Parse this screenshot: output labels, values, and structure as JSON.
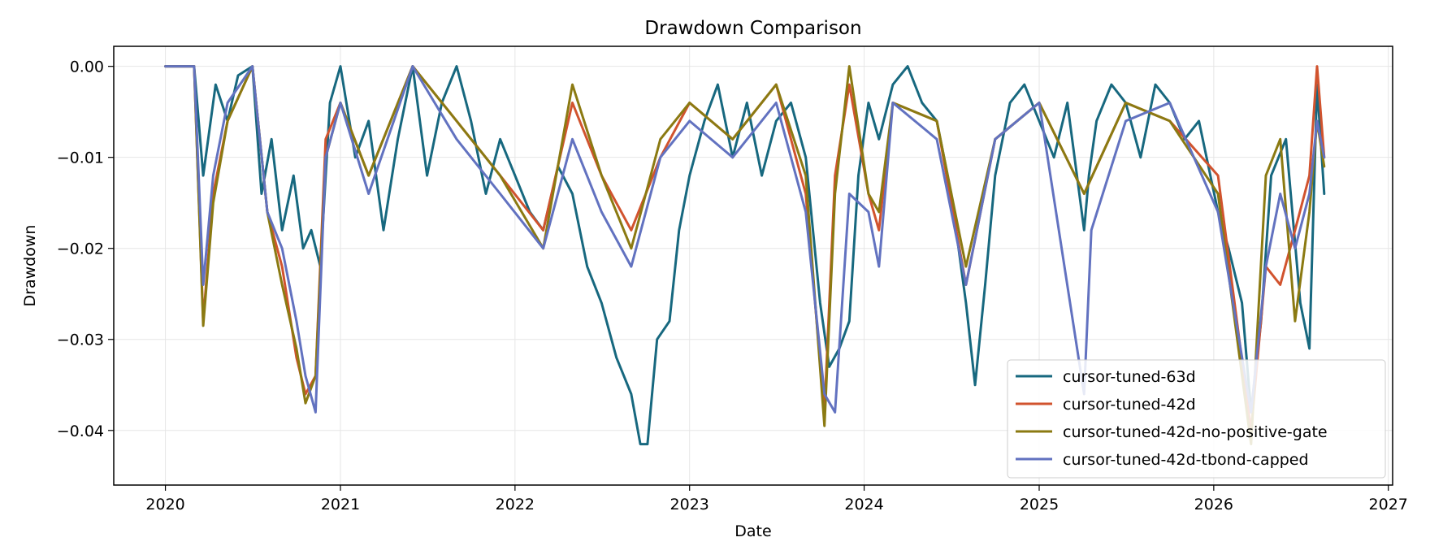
{
  "chart_data": {
    "type": "line",
    "title": "Drawdown Comparison",
    "xlabel": "Date",
    "ylabel": "Drawdown",
    "xlim": [
      "2019-09-15",
      "2027-01-10"
    ],
    "ylim": [
      -0.046,
      0.0022
    ],
    "x_ticks": [
      "2020",
      "2021",
      "2022",
      "2023",
      "2024",
      "2025",
      "2026",
      "2027"
    ],
    "y_ticks": [
      "0.00",
      "−0.01",
      "−0.02",
      "−0.03",
      "−0.04"
    ],
    "y_tick_values": [
      0.0,
      -0.01,
      -0.02,
      -0.03,
      -0.04
    ],
    "grid": true,
    "legend_position": "lower-right",
    "series": [
      {
        "name": "cursor-tuned-63d",
        "color": "#17687f",
        "points": [
          [
            "2020-01-01",
            0.0
          ],
          [
            "2020-03-01",
            0.0
          ],
          [
            "2020-03-20",
            -0.012
          ],
          [
            "2020-04-15",
            -0.002
          ],
          [
            "2020-05-10",
            -0.006
          ],
          [
            "2020-06-01",
            -0.001
          ],
          [
            "2020-07-01",
            0.0
          ],
          [
            "2020-07-20",
            -0.014
          ],
          [
            "2020-08-10",
            -0.008
          ],
          [
            "2020-09-01",
            -0.018
          ],
          [
            "2020-09-25",
            -0.012
          ],
          [
            "2020-10-15",
            -0.02
          ],
          [
            "2020-11-01",
            -0.018
          ],
          [
            "2020-11-20",
            -0.022
          ],
          [
            "2020-12-10",
            -0.004
          ],
          [
            "2021-01-01",
            0.0
          ],
          [
            "2021-02-01",
            -0.01
          ],
          [
            "2021-03-01",
            -0.006
          ],
          [
            "2021-04-01",
            -0.018
          ],
          [
            "2021-05-01",
            -0.008
          ],
          [
            "2021-06-01",
            0.0
          ],
          [
            "2021-07-01",
            -0.012
          ],
          [
            "2021-08-01",
            -0.004
          ],
          [
            "2021-09-01",
            0.0
          ],
          [
            "2021-10-01",
            -0.006
          ],
          [
            "2021-11-01",
            -0.014
          ],
          [
            "2021-12-01",
            -0.008
          ],
          [
            "2022-01-01",
            -0.012
          ],
          [
            "2022-02-01",
            -0.016
          ],
          [
            "2022-03-01",
            -0.018
          ],
          [
            "2022-04-01",
            -0.011
          ],
          [
            "2022-05-01",
            -0.014
          ],
          [
            "2022-06-01",
            -0.022
          ],
          [
            "2022-07-01",
            -0.026
          ],
          [
            "2022-08-01",
            -0.032
          ],
          [
            "2022-09-01",
            -0.036
          ],
          [
            "2022-09-20",
            -0.0415
          ],
          [
            "2022-10-05",
            -0.0415
          ],
          [
            "2022-10-25",
            -0.03
          ],
          [
            "2022-11-20",
            -0.028
          ],
          [
            "2022-12-10",
            -0.018
          ],
          [
            "2023-01-01",
            -0.012
          ],
          [
            "2023-02-01",
            -0.006
          ],
          [
            "2023-03-01",
            -0.002
          ],
          [
            "2023-04-01",
            -0.01
          ],
          [
            "2023-05-01",
            -0.004
          ],
          [
            "2023-06-01",
            -0.012
          ],
          [
            "2023-07-01",
            -0.006
          ],
          [
            "2023-08-01",
            -0.004
          ],
          [
            "2023-09-01",
            -0.01
          ],
          [
            "2023-10-01",
            -0.026
          ],
          [
            "2023-10-20",
            -0.033
          ],
          [
            "2023-11-10",
            -0.031
          ],
          [
            "2023-12-01",
            -0.028
          ],
          [
            "2023-12-20",
            -0.012
          ],
          [
            "2024-01-10",
            -0.004
          ],
          [
            "2024-02-01",
            -0.008
          ],
          [
            "2024-03-01",
            -0.002
          ],
          [
            "2024-04-01",
            0.0
          ],
          [
            "2024-05-01",
            -0.004
          ],
          [
            "2024-06-01",
            -0.006
          ],
          [
            "2024-07-01",
            -0.014
          ],
          [
            "2024-08-01",
            -0.026
          ],
          [
            "2024-08-20",
            -0.035
          ],
          [
            "2024-09-10",
            -0.024
          ],
          [
            "2024-10-01",
            -0.012
          ],
          [
            "2024-11-01",
            -0.004
          ],
          [
            "2024-12-01",
            -0.002
          ],
          [
            "2025-01-01",
            -0.006
          ],
          [
            "2025-02-01",
            -0.01
          ],
          [
            "2025-03-01",
            -0.004
          ],
          [
            "2025-04-05",
            -0.018
          ],
          [
            "2025-04-15",
            -0.012
          ],
          [
            "2025-05-01",
            -0.006
          ],
          [
            "2025-06-01",
            -0.002
          ],
          [
            "2025-07-01",
            -0.004
          ],
          [
            "2025-08-01",
            -0.01
          ],
          [
            "2025-09-01",
            -0.002
          ],
          [
            "2025-10-01",
            -0.004
          ],
          [
            "2025-11-01",
            -0.008
          ],
          [
            "2025-12-01",
            -0.006
          ],
          [
            "2026-01-10",
            -0.016
          ],
          [
            "2026-02-01",
            -0.02
          ],
          [
            "2026-03-01",
            -0.026
          ],
          [
            "2026-03-20",
            -0.038
          ],
          [
            "2026-04-10",
            -0.028
          ],
          [
            "2026-05-01",
            -0.012
          ],
          [
            "2026-06-01",
            -0.008
          ],
          [
            "2026-07-01",
            -0.026
          ],
          [
            "2026-07-20",
            -0.031
          ],
          [
            "2026-08-05",
            -0.002
          ],
          [
            "2026-08-20",
            -0.014
          ]
        ]
      },
      {
        "name": "cursor-tuned-42d",
        "color": "#d1532e",
        "points": [
          [
            "2020-01-01",
            0.0
          ],
          [
            "2020-03-01",
            0.0
          ],
          [
            "2020-03-20",
            -0.028
          ],
          [
            "2020-04-10",
            -0.014
          ],
          [
            "2020-05-10",
            -0.006
          ],
          [
            "2020-07-01",
            0.0
          ],
          [
            "2020-08-01",
            -0.016
          ],
          [
            "2020-09-01",
            -0.022
          ],
          [
            "2020-10-01",
            -0.032
          ],
          [
            "2020-10-20",
            -0.036
          ],
          [
            "2020-11-10",
            -0.034
          ],
          [
            "2020-12-01",
            -0.008
          ],
          [
            "2021-01-01",
            -0.004
          ],
          [
            "2021-03-01",
            -0.012
          ],
          [
            "2021-06-01",
            0.0
          ],
          [
            "2021-09-01",
            -0.006
          ],
          [
            "2021-12-01",
            -0.012
          ],
          [
            "2022-03-01",
            -0.018
          ],
          [
            "2022-05-01",
            -0.004
          ],
          [
            "2022-07-01",
            -0.012
          ],
          [
            "2022-09-01",
            -0.018
          ],
          [
            "2022-11-01",
            -0.01
          ],
          [
            "2023-01-01",
            -0.004
          ],
          [
            "2023-04-01",
            -0.008
          ],
          [
            "2023-07-01",
            -0.002
          ],
          [
            "2023-09-01",
            -0.014
          ],
          [
            "2023-10-10",
            -0.038
          ],
          [
            "2023-11-01",
            -0.012
          ],
          [
            "2023-12-01",
            -0.002
          ],
          [
            "2024-01-10",
            -0.014
          ],
          [
            "2024-02-01",
            -0.018
          ],
          [
            "2024-03-01",
            -0.004
          ],
          [
            "2024-06-01",
            -0.006
          ],
          [
            "2024-08-01",
            -0.024
          ],
          [
            "2024-10-01",
            -0.008
          ],
          [
            "2025-01-01",
            -0.004
          ],
          [
            "2025-04-05",
            -0.014
          ],
          [
            "2025-07-01",
            -0.004
          ],
          [
            "2025-10-01",
            -0.006
          ],
          [
            "2026-01-10",
            -0.012
          ],
          [
            "2026-03-20",
            -0.04
          ],
          [
            "2026-04-20",
            -0.022
          ],
          [
            "2026-05-20",
            -0.024
          ],
          [
            "2026-06-20",
            -0.018
          ],
          [
            "2026-07-20",
            -0.012
          ],
          [
            "2026-08-05",
            0.0
          ],
          [
            "2026-08-20",
            -0.01
          ]
        ]
      },
      {
        "name": "cursor-tuned-42d-no-positive-gate",
        "color": "#8b7a12",
        "points": [
          [
            "2020-01-01",
            0.0
          ],
          [
            "2020-03-01",
            0.0
          ],
          [
            "2020-03-20",
            -0.0285
          ],
          [
            "2020-04-10",
            -0.015
          ],
          [
            "2020-05-10",
            -0.006
          ],
          [
            "2020-07-01",
            0.0
          ],
          [
            "2020-08-01",
            -0.016
          ],
          [
            "2020-09-01",
            -0.024
          ],
          [
            "2020-10-01",
            -0.031
          ],
          [
            "2020-10-20",
            -0.037
          ],
          [
            "2020-11-10",
            -0.034
          ],
          [
            "2020-12-01",
            -0.01
          ],
          [
            "2021-01-01",
            -0.004
          ],
          [
            "2021-03-01",
            -0.012
          ],
          [
            "2021-06-01",
            0.0
          ],
          [
            "2021-09-01",
            -0.006
          ],
          [
            "2021-12-01",
            -0.012
          ],
          [
            "2022-03-01",
            -0.02
          ],
          [
            "2022-05-01",
            -0.002
          ],
          [
            "2022-07-01",
            -0.012
          ],
          [
            "2022-09-01",
            -0.02
          ],
          [
            "2022-11-01",
            -0.008
          ],
          [
            "2023-01-01",
            -0.004
          ],
          [
            "2023-04-01",
            -0.008
          ],
          [
            "2023-07-01",
            -0.002
          ],
          [
            "2023-09-01",
            -0.012
          ],
          [
            "2023-10-10",
            -0.0395
          ],
          [
            "2023-11-01",
            -0.014
          ],
          [
            "2023-12-01",
            0.0
          ],
          [
            "2024-01-10",
            -0.014
          ],
          [
            "2024-02-01",
            -0.016
          ],
          [
            "2024-03-01",
            -0.004
          ],
          [
            "2024-06-01",
            -0.006
          ],
          [
            "2024-08-01",
            -0.022
          ],
          [
            "2024-10-01",
            -0.008
          ],
          [
            "2025-01-01",
            -0.004
          ],
          [
            "2025-04-05",
            -0.014
          ],
          [
            "2025-07-01",
            -0.004
          ],
          [
            "2025-10-01",
            -0.006
          ],
          [
            "2026-01-10",
            -0.014
          ],
          [
            "2026-03-20",
            -0.0415
          ],
          [
            "2026-04-20",
            -0.012
          ],
          [
            "2026-05-20",
            -0.008
          ],
          [
            "2026-06-20",
            -0.028
          ],
          [
            "2026-07-20",
            -0.016
          ],
          [
            "2026-08-05",
            -0.006
          ],
          [
            "2026-08-20",
            -0.011
          ]
        ]
      },
      {
        "name": "cursor-tuned-42d-tbond-capped",
        "color": "#6272c0",
        "points": [
          [
            "2020-01-01",
            0.0
          ],
          [
            "2020-03-01",
            0.0
          ],
          [
            "2020-03-20",
            -0.024
          ],
          [
            "2020-04-10",
            -0.012
          ],
          [
            "2020-05-10",
            -0.004
          ],
          [
            "2020-07-01",
            0.0
          ],
          [
            "2020-08-01",
            -0.016
          ],
          [
            "2020-09-01",
            -0.02
          ],
          [
            "2020-10-01",
            -0.028
          ],
          [
            "2020-10-20",
            -0.034
          ],
          [
            "2020-11-10",
            -0.038
          ],
          [
            "2020-12-01",
            -0.01
          ],
          [
            "2021-01-01",
            -0.004
          ],
          [
            "2021-03-01",
            -0.014
          ],
          [
            "2021-06-01",
            0.0
          ],
          [
            "2021-09-01",
            -0.008
          ],
          [
            "2021-12-01",
            -0.014
          ],
          [
            "2022-03-01",
            -0.02
          ],
          [
            "2022-05-01",
            -0.008
          ],
          [
            "2022-07-01",
            -0.016
          ],
          [
            "2022-09-01",
            -0.022
          ],
          [
            "2022-11-01",
            -0.01
          ],
          [
            "2023-01-01",
            -0.006
          ],
          [
            "2023-04-01",
            -0.01
          ],
          [
            "2023-07-01",
            -0.004
          ],
          [
            "2023-09-01",
            -0.016
          ],
          [
            "2023-10-10",
            -0.036
          ],
          [
            "2023-11-01",
            -0.038
          ],
          [
            "2023-12-01",
            -0.014
          ],
          [
            "2024-01-10",
            -0.016
          ],
          [
            "2024-02-01",
            -0.022
          ],
          [
            "2024-03-01",
            -0.004
          ],
          [
            "2024-06-01",
            -0.008
          ],
          [
            "2024-08-01",
            -0.024
          ],
          [
            "2024-10-01",
            -0.008
          ],
          [
            "2025-01-01",
            -0.004
          ],
          [
            "2025-04-05",
            -0.036
          ],
          [
            "2025-04-20",
            -0.018
          ],
          [
            "2025-07-01",
            -0.006
          ],
          [
            "2025-10-01",
            -0.004
          ],
          [
            "2026-01-10",
            -0.016
          ],
          [
            "2026-03-20",
            -0.038
          ],
          [
            "2026-04-20",
            -0.022
          ],
          [
            "2026-05-20",
            -0.014
          ],
          [
            "2026-06-20",
            -0.02
          ],
          [
            "2026-07-20",
            -0.014
          ],
          [
            "2026-08-05",
            -0.006
          ],
          [
            "2026-08-20",
            -0.01
          ]
        ]
      }
    ]
  }
}
